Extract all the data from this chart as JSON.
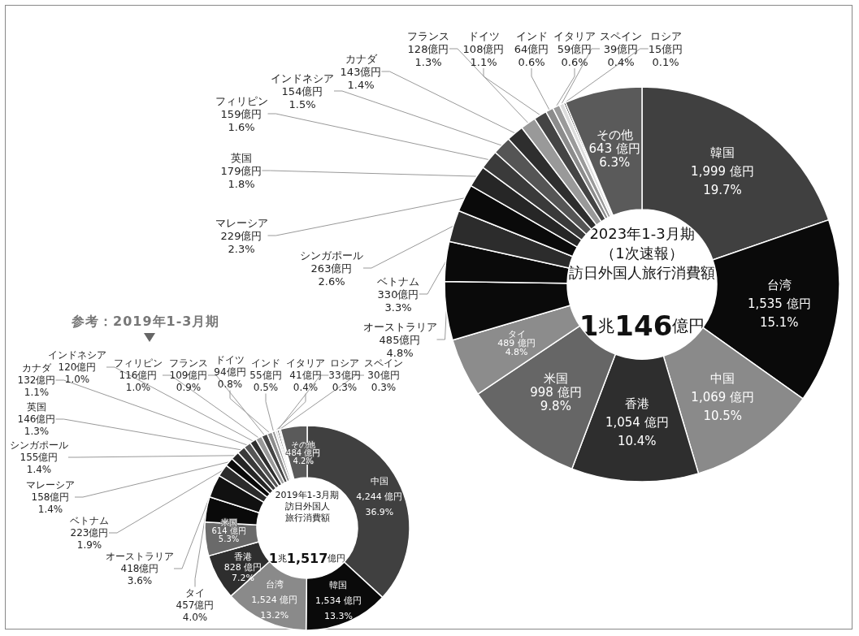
{
  "chart_data": [
    {
      "type": "donut",
      "title": "2023年1-3月期（1次速報）訪日外国人旅行消費額",
      "subtitle": "1兆146億円",
      "categories": [
        "韓国",
        "台湾",
        "中国",
        "香港",
        "米国",
        "タイ",
        "オーストラリア",
        "ベトナム",
        "シンガポール",
        "マレーシア",
        "英国",
        "フィリピン",
        "インドネシア",
        "カナダ",
        "フランス",
        "ドイツ",
        "インド",
        "イタリア",
        "スペイン",
        "ロシア",
        "その他"
      ],
      "values": [
        1999,
        1535,
        1069,
        1054,
        998,
        489,
        485,
        330,
        263,
        229,
        179,
        159,
        154,
        143,
        128,
        108,
        64,
        59,
        39,
        15,
        643
      ],
      "value_labels": [
        "1,999 億円\n19.7%",
        "1,535 億円\n15.1%",
        "1,069 億円\n10.5%",
        "1,054 億円\n10.4%",
        "998 億円\n9.8%",
        "489 億円\n4.8%",
        "485億円\n4.8%",
        "330億円\n3.3%",
        "263億円\n2.6%",
        "229億円\n2.3%",
        "179億円\n1.8%",
        "159億円\n1.6%",
        "154億円\n1.5%",
        "143億円\n1.4%",
        "128億円\n1.3%",
        "108億円\n1.1%",
        "64億円\n0.6%",
        "59億円\n0.6%",
        "39億円\n0.4%",
        "15億円\n0.1%",
        "643 億円\n6.3%"
      ],
      "colors": [
        "#404040",
        "#0a0a0a",
        "#8a8a8a",
        "#2e2e2e",
        "#666666",
        "#8c8c8c",
        "#0a0a0a",
        "#0a0a0a",
        "#2c2c2c",
        "#0a0a0a",
        "#262626",
        "#3a3a3a",
        "#555555",
        "#2e2e2e",
        "#999999",
        "#444444",
        "#8c8c8c",
        "#9a9a9a",
        "#dddddd",
        "#111111",
        "#5a5a5a"
      ]
    },
    {
      "type": "donut",
      "title": "2019年1-3月期訪日外国人旅行消費額",
      "subtitle": "1兆1,517億円",
      "annotations": [
        "参考：2019年1-3月期"
      ],
      "categories": [
        "中国",
        "韓国",
        "台湾",
        "香港",
        "米国",
        "タイ",
        "オーストラリア",
        "ベトナム",
        "マレーシア",
        "シンガポール",
        "英国",
        "カナダ",
        "インドネシア",
        "フィリピン",
        "フランス",
        "ドイツ",
        "インド",
        "イタリア",
        "ロシア",
        "スペイン",
        "その他"
      ],
      "values": [
        4244,
        1534,
        1524,
        828,
        614,
        457,
        418,
        223,
        158,
        155,
        146,
        132,
        120,
        116,
        109,
        94,
        55,
        41,
        33,
        30,
        484
      ],
      "value_labels": [
        "4,244 億円\n36.9%",
        "1,534 億円\n13.3%",
        "1,524 億円\n13.2%",
        "828 億円\n7.2%",
        "614 億円\n5.3%",
        "457億円\n4.0%",
        "418億円\n3.6%",
        "223億円\n1.9%",
        "158億円\n1.4%",
        "155億円\n1.4%",
        "146億円\n1.3%",
        "132億円\n1.1%",
        "120億円\n1.0%",
        "116億円\n1.0%",
        "109億円\n0.9%",
        "94億円\n0.8%",
        "55億円\n0.5%",
        "41億円\n0.4%",
        "33億円\n0.3%",
        "30億円\n0.3%",
        "484 億円\n4.2%"
      ],
      "colors": [
        "#404040",
        "#0a0a0a",
        "#8a8a8a",
        "#2e2e2e",
        "#6a6a6a",
        "#0a0a0a",
        "#111111",
        "#2c2c2c",
        "#0a0a0a",
        "#262626",
        "#3a3a3a",
        "#555555",
        "#2e2e2e",
        "#999999",
        "#444444",
        "#8c8c8c",
        "#9a9a9a",
        "#dddddd",
        "#222222",
        "#bbbbbb",
        "#5a5a5a"
      ]
    }
  ]
}
